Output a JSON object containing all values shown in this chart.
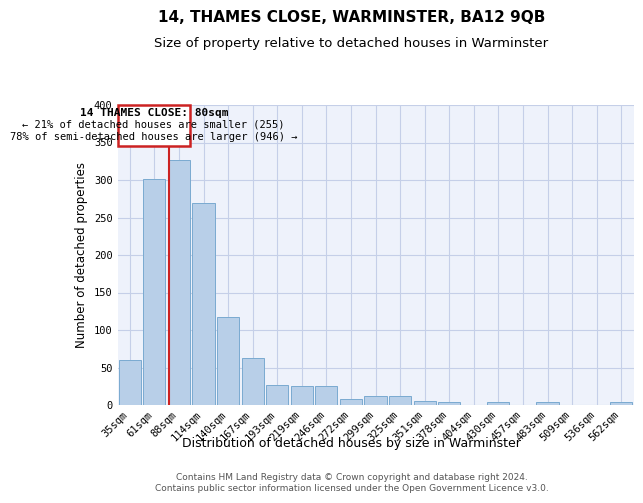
{
  "title": "14, THAMES CLOSE, WARMINSTER, BA12 9QB",
  "subtitle": "Size of property relative to detached houses in Warminster",
  "xlabel": "Distribution of detached houses by size in Warminster",
  "ylabel": "Number of detached properties",
  "categories": [
    "35sqm",
    "61sqm",
    "88sqm",
    "114sqm",
    "140sqm",
    "167sqm",
    "193sqm",
    "219sqm",
    "246sqm",
    "272sqm",
    "299sqm",
    "325sqm",
    "351sqm",
    "378sqm",
    "404sqm",
    "430sqm",
    "457sqm",
    "483sqm",
    "509sqm",
    "536sqm",
    "562sqm"
  ],
  "values": [
    60,
    302,
    327,
    270,
    118,
    63,
    27,
    26,
    25,
    8,
    12,
    12,
    5,
    4,
    0,
    4,
    0,
    4,
    0,
    0,
    4
  ],
  "bar_color": "#b8cfe8",
  "bar_edge_color": "#7aaad0",
  "marker_line_color": "#cc2222",
  "marker_box_color": "#cc2222",
  "annotation_line1": "14 THAMES CLOSE: 80sqm",
  "annotation_line2": "← 21% of detached houses are smaller (255)",
  "annotation_line3": "78% of semi-detached houses are larger (946) →",
  "footer1": "Contains HM Land Registry data © Crown copyright and database right 2024.",
  "footer2": "Contains public sector information licensed under the Open Government Licence v3.0.",
  "ylim_max": 400,
  "background_color": "#eef2fb",
  "grid_color": "#c5cfe8",
  "title_fontsize": 11,
  "subtitle_fontsize": 9.5,
  "ylabel_fontsize": 8.5,
  "xlabel_fontsize": 9,
  "tick_fontsize": 7.5,
  "footer_fontsize": 6.5
}
